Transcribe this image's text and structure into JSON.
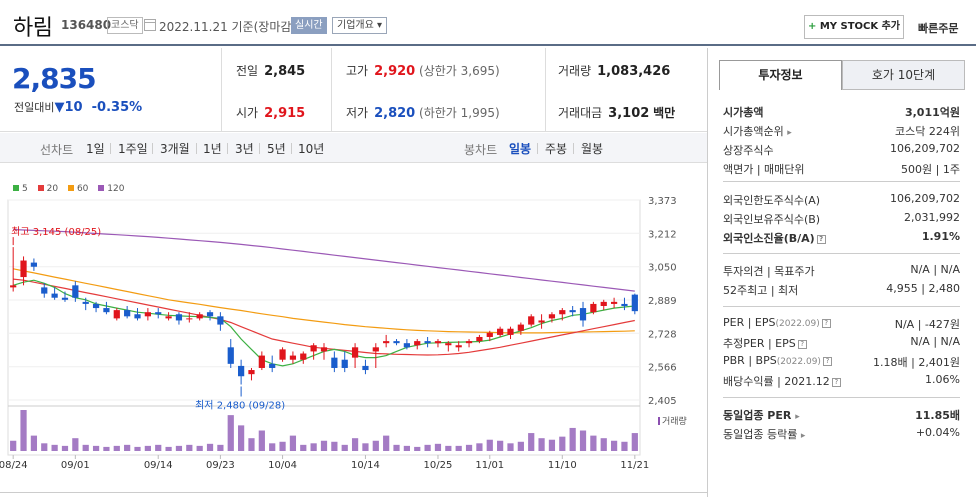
{
  "header": {
    "name": "하림",
    "code": "136480",
    "market": "코스닥",
    "date": "2022.11.21 기준(장마감)",
    "realtime_label": "실시간",
    "company_label": "기업개요 ▾",
    "mystock_plus": "+",
    "mystock_label": "MY STOCK 추가",
    "quick_order": "빠른주문"
  },
  "summary": {
    "price": "2,835",
    "change_label": "전일대비",
    "change_arrow": "▼",
    "change": "10",
    "change_pct": "-0.35%",
    "prev_close_label": "전일",
    "prev_close": "2,845",
    "open_label": "시가",
    "open": "2,915",
    "high_label": "고가",
    "high": "2,920",
    "upper_limit": "(상한가 3,695)",
    "low_label": "저가",
    "low": "2,820",
    "lower_limit": "(하한가 1,995)",
    "volume_label": "거래량",
    "volume": "1,083,426",
    "amount_label": "거래대금",
    "amount": "3,102",
    "amount_unit": "백만"
  },
  "period_tabs": {
    "line_label": "선차트",
    "line_periods": [
      "1일",
      "1주일",
      "3개월",
      "1년",
      "3년",
      "5년",
      "10년"
    ],
    "candle_label": "봉차트",
    "candle_periods": [
      "일봉",
      "주봉",
      "월봉"
    ],
    "active_candle": "일봉"
  },
  "right_panel": {
    "tab_active": "투자정보",
    "tab_inactive": "호가 10단계",
    "market_cap_label": "시가총액",
    "market_cap": "3,011억원",
    "market_rank_label": "시가총액순위",
    "market_rank": "코스닥 224위",
    "shares_label": "상장주식수",
    "shares": "106,209,702",
    "par_label": "액면가 | 매매단위",
    "par": "500원",
    "unit": "1주",
    "foreign_limit_label": "외국인한도주식수(A)",
    "foreign_limit": "106,209,702",
    "foreign_hold_label": "외국인보유주식수(B)",
    "foreign_hold": "2,031,992",
    "foreign_ratio_label": "외국인소진율(B/A)",
    "foreign_ratio": "1.91%",
    "opinion_label": "투자의견 | 목표주가",
    "opinion": "N/A",
    "target": "N/A",
    "week52_label": "52주최고 | 최저",
    "week52_high": "4,955",
    "week52_low": "2,480",
    "per_label": "PER | EPS",
    "per_period": "(2022.09)",
    "per": "N/A",
    "eps": "-427원",
    "est_per_label": "추정PER | EPS",
    "est_per": "N/A",
    "est_eps": "N/A",
    "pbr_label": "PBR | BPS",
    "pbr_period": "(2022.09)",
    "pbr": "1.18배",
    "bps": "2,401원",
    "div_label": "배당수익률 | 2021.12",
    "div": "1.06%",
    "sector_per_label": "동일업종 PER",
    "sector_per": "11.85배",
    "sector_change_label": "동일업종 등락률",
    "sector_change": "+0.04%",
    "q_icon": "?",
    "caret_icon": "▸"
  },
  "chart_data": {
    "type": "candlestick",
    "legend": [
      {
        "name": "5",
        "color": "#3cb043"
      },
      {
        "name": "20",
        "color": "#e43b3b"
      },
      {
        "name": "60",
        "color": "#f39c12"
      },
      {
        "name": "120",
        "color": "#9b59b6"
      }
    ],
    "y_ticks": [
      3373,
      3212,
      3050,
      2889,
      2728,
      2566,
      2405
    ],
    "ylim": [
      2405,
      3373
    ],
    "x_labels": [
      "08/24",
      "09/01",
      "09/14",
      "09/23",
      "10/04",
      "10/14",
      "10/25",
      "11/01",
      "11/10",
      "11/21"
    ],
    "x_label_index": [
      0,
      6,
      14,
      20,
      26,
      34,
      41,
      46,
      53,
      60
    ],
    "max_label": "최고 3,145 (08/25)",
    "min_label": "최저 2,480 (09/28)",
    "volume_label": "거래량",
    "ohlc": [
      [
        2950,
        3145,
        2930,
        2960
      ],
      [
        3000,
        3100,
        2960,
        3080
      ],
      [
        3070,
        3090,
        3030,
        3050
      ],
      [
        2950,
        2970,
        2900,
        2920
      ],
      [
        2920,
        2950,
        2890,
        2900
      ],
      [
        2900,
        2930,
        2880,
        2890
      ],
      [
        2960,
        2980,
        2880,
        2900
      ],
      [
        2880,
        2900,
        2840,
        2870
      ],
      [
        2870,
        2880,
        2830,
        2850
      ],
      [
        2850,
        2880,
        2820,
        2830
      ],
      [
        2800,
        2850,
        2790,
        2840
      ],
      [
        2840,
        2860,
        2800,
        2810
      ],
      [
        2820,
        2850,
        2790,
        2800
      ],
      [
        2810,
        2850,
        2790,
        2830
      ],
      [
        2830,
        2850,
        2800,
        2820
      ],
      [
        2800,
        2830,
        2790,
        2810
      ],
      [
        2820,
        2830,
        2770,
        2790
      ],
      [
        2800,
        2830,
        2780,
        2800
      ],
      [
        2800,
        2830,
        2790,
        2820
      ],
      [
        2830,
        2840,
        2790,
        2810
      ],
      [
        2810,
        2830,
        2740,
        2770
      ],
      [
        2660,
        2700,
        2560,
        2580
      ],
      [
        2570,
        2600,
        2480,
        2520
      ],
      [
        2530,
        2560,
        2500,
        2550
      ],
      [
        2560,
        2640,
        2550,
        2620
      ],
      [
        2580,
        2620,
        2540,
        2560
      ],
      [
        2600,
        2660,
        2590,
        2650
      ],
      [
        2600,
        2640,
        2580,
        2620
      ],
      [
        2600,
        2640,
        2580,
        2630
      ],
      [
        2640,
        2680,
        2600,
        2670
      ],
      [
        2640,
        2680,
        2600,
        2660
      ],
      [
        2610,
        2640,
        2540,
        2560
      ],
      [
        2600,
        2640,
        2540,
        2560
      ],
      [
        2610,
        2680,
        2560,
        2660
      ],
      [
        2570,
        2600,
        2530,
        2550
      ],
      [
        2640,
        2680,
        2560,
        2660
      ],
      [
        2680,
        2720,
        2660,
        2690
      ],
      [
        2690,
        2700,
        2670,
        2680
      ],
      [
        2680,
        2700,
        2650,
        2660
      ],
      [
        2670,
        2700,
        2650,
        2690
      ],
      [
        2690,
        2710,
        2660,
        2680
      ],
      [
        2680,
        2700,
        2660,
        2690
      ],
      [
        2670,
        2690,
        2640,
        2680
      ],
      [
        2660,
        2690,
        2640,
        2670
      ],
      [
        2680,
        2700,
        2660,
        2690
      ],
      [
        2690,
        2720,
        2680,
        2710
      ],
      [
        2710,
        2740,
        2690,
        2730
      ],
      [
        2720,
        2760,
        2710,
        2750
      ],
      [
        2720,
        2760,
        2700,
        2750
      ],
      [
        2740,
        2780,
        2720,
        2770
      ],
      [
        2770,
        2820,
        2760,
        2810
      ],
      [
        2780,
        2820,
        2750,
        2790
      ],
      [
        2800,
        2830,
        2780,
        2820
      ],
      [
        2820,
        2850,
        2790,
        2840
      ],
      [
        2840,
        2860,
        2810,
        2830
      ],
      [
        2850,
        2880,
        2760,
        2790
      ],
      [
        2830,
        2880,
        2820,
        2870
      ],
      [
        2860,
        2890,
        2840,
        2880
      ],
      [
        2870,
        2900,
        2850,
        2880
      ],
      [
        2870,
        2900,
        2840,
        2860
      ],
      [
        2915,
        2920,
        2820,
        2835
      ]
    ],
    "volumes": [
      20,
      80,
      30,
      15,
      12,
      10,
      25,
      12,
      10,
      8,
      10,
      12,
      8,
      10,
      12,
      8,
      10,
      12,
      10,
      14,
      12,
      70,
      50,
      25,
      40,
      15,
      18,
      30,
      12,
      15,
      20,
      18,
      12,
      25,
      15,
      20,
      30,
      12,
      10,
      8,
      12,
      14,
      10,
      10,
      12,
      15,
      22,
      20,
      15,
      18,
      35,
      25,
      22,
      28,
      45,
      40,
      30,
      25,
      20,
      18,
      35
    ],
    "ma5": [
      2960,
      2975,
      2985,
      2970,
      2950,
      2920,
      2900,
      2890,
      2870,
      2860,
      2850,
      2840,
      2830,
      2825,
      2820,
      2815,
      2812,
      2810,
      2808,
      2805,
      2800,
      2760,
      2700,
      2650,
      2600,
      2580,
      2570,
      2580,
      2600,
      2620,
      2640,
      2650,
      2640,
      2620,
      2610,
      2610,
      2620,
      2640,
      2660,
      2670,
      2680,
      2682,
      2684,
      2685,
      2686,
      2688,
      2695,
      2710,
      2725,
      2740,
      2755,
      2775,
      2790,
      2800,
      2815,
      2820,
      2830,
      2840,
      2850,
      2855,
      2860
    ],
    "ma20": [
      2990,
      2985,
      2975,
      2965,
      2955,
      2945,
      2935,
      2925,
      2915,
      2905,
      2895,
      2885,
      2875,
      2865,
      2855,
      2845,
      2835,
      2825,
      2815,
      2805,
      2795,
      2780,
      2760,
      2740,
      2720,
      2700,
      2690,
      2680,
      2670,
      2660,
      2655,
      2650,
      2645,
      2640,
      2635,
      2630,
      2628,
      2626,
      2625,
      2624,
      2623,
      2624,
      2626,
      2630,
      2636,
      2644,
      2652,
      2660,
      2670,
      2680,
      2690,
      2700,
      2710,
      2720,
      2730,
      2740,
      2750,
      2760,
      2770,
      2780,
      2790
    ],
    "ma60": [
      3040,
      3030,
      3020,
      3010,
      3000,
      2990,
      2980,
      2970,
      2960,
      2950,
      2940,
      2930,
      2920,
      2910,
      2900,
      2890,
      2882,
      2875,
      2868,
      2860,
      2852,
      2845,
      2838,
      2830,
      2822,
      2815,
      2808,
      2800,
      2794,
      2788,
      2782,
      2776,
      2770,
      2765,
      2760,
      2756,
      2752,
      2748,
      2745,
      2742,
      2740,
      2738,
      2736,
      2735,
      2734,
      2733,
      2732,
      2731,
      2730,
      2730,
      2730,
      2730,
      2731,
      2732,
      2733,
      2734,
      2735,
      2736,
      2737,
      2738,
      2740
    ],
    "ma120": [
      3230,
      3228,
      3226,
      3224,
      3222,
      3220,
      3217,
      3214,
      3211,
      3208,
      3205,
      3202,
      3199,
      3196,
      3192,
      3188,
      3184,
      3180,
      3176,
      3172,
      3168,
      3163,
      3158,
      3153,
      3148,
      3142,
      3136,
      3130,
      3124,
      3118,
      3112,
      3106,
      3100,
      3094,
      3088,
      3082,
      3076,
      3070,
      3064,
      3058,
      3052,
      3046,
      3040,
      3034,
      3028,
      3022,
      3016,
      3010,
      3004,
      2998,
      2992,
      2986,
      2980,
      2974,
      2968,
      2962,
      2956,
      2950,
      2944,
      2938,
      2932
    ]
  }
}
